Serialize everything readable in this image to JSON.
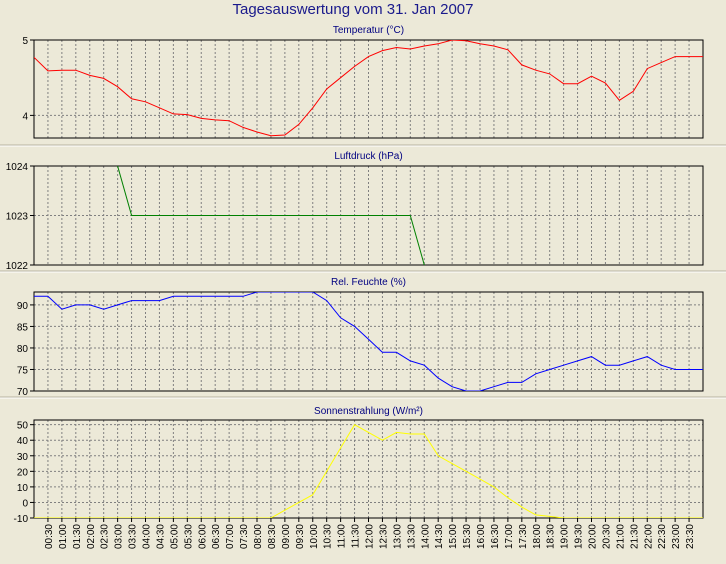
{
  "title": "Tagesauswertung vom 31. Jan 2007",
  "colors": {
    "background": "#ece9d8",
    "plot_background": "#ece9d8",
    "grid": "#808080",
    "axis": "#000000",
    "title": "#1a1a8c"
  },
  "time_labels": [
    "00:30",
    "01:00",
    "01:30",
    "02:00",
    "02:30",
    "03:00",
    "03:30",
    "04:00",
    "04:30",
    "05:00",
    "05:30",
    "06:00",
    "06:30",
    "07:00",
    "07:30",
    "08:00",
    "08:30",
    "09:00",
    "09:30",
    "10:00",
    "10:30",
    "11:00",
    "11:30",
    "12:00",
    "12:30",
    "13:00",
    "13:30",
    "14:00",
    "14:30",
    "15:00",
    "15:30",
    "16:00",
    "16:30",
    "17:00",
    "17:30",
    "18:00",
    "18:30",
    "19:00",
    "19:30",
    "20:00",
    "20:30",
    "21:00",
    "21:30",
    "22:00",
    "22:30",
    "23:00",
    "23:30"
  ],
  "chart_data": [
    {
      "type": "line",
      "title": "Temperatur (°C)",
      "ylim": [
        3.7,
        5.0
      ],
      "yticks": [
        4,
        5
      ],
      "grid": true,
      "series": [
        {
          "color": "#ff0000",
          "x": [
            "00:00",
            "00:30",
            "01:00",
            "01:30",
            "02:00",
            "02:30",
            "03:00",
            "03:30",
            "04:00",
            "04:30",
            "05:00",
            "05:30",
            "06:00",
            "06:30",
            "07:00",
            "07:30",
            "08:00",
            "08:30",
            "09:00",
            "09:30",
            "10:00",
            "10:30",
            "11:00",
            "11:30",
            "12:00",
            "12:30",
            "13:00",
            "13:30",
            "14:00",
            "14:30",
            "15:00",
            "15:30",
            "16:00",
            "16:30",
            "17:00",
            "17:30",
            "18:00",
            "18:30",
            "19:00",
            "19:30",
            "20:00",
            "20:30",
            "21:00",
            "21:30",
            "22:00",
            "22:30",
            "23:00",
            "23:30",
            "24:00"
          ],
          "values": [
            4.77,
            4.59,
            4.6,
            4.6,
            4.53,
            4.49,
            4.38,
            4.22,
            4.18,
            4.1,
            4.02,
            4.01,
            3.96,
            3.94,
            3.93,
            3.84,
            3.78,
            3.73,
            3.74,
            3.88,
            4.1,
            4.35,
            4.5,
            4.65,
            4.78,
            4.86,
            4.9,
            4.88,
            4.92,
            4.95,
            5.0,
            4.99,
            4.95,
            4.92,
            4.87,
            4.67,
            4.6,
            4.55,
            4.42,
            4.42,
            4.52,
            4.43,
            4.2,
            4.32,
            4.62,
            4.7,
            4.78,
            4.78,
            4.78
          ]
        }
      ]
    },
    {
      "type": "line",
      "title": "Luftdruck (hPa)",
      "ylim": [
        1022,
        1024
      ],
      "yticks": [
        1022,
        1023,
        1024
      ],
      "grid": true,
      "series": [
        {
          "color": "#008000",
          "x": [
            "03:00",
            "03:30",
            "04:00",
            "04:30",
            "05:00",
            "05:30",
            "06:00",
            "06:30",
            "07:00",
            "07:30",
            "08:00",
            "08:30",
            "09:00",
            "09:30",
            "10:00",
            "10:30",
            "11:00",
            "11:30",
            "12:00",
            "12:30",
            "13:00",
            "13:30",
            "14:00"
          ],
          "values": [
            1024.0,
            1023.0,
            1023.0,
            1023.0,
            1023.0,
            1023.0,
            1023.0,
            1023.0,
            1023.0,
            1023.0,
            1023.0,
            1023.0,
            1023.0,
            1023.0,
            1023.0,
            1023.0,
            1023.0,
            1023.0,
            1023.0,
            1023.0,
            1023.0,
            1023.0,
            1022.0
          ]
        }
      ]
    },
    {
      "type": "line",
      "title": "Rel. Feuchte (%)",
      "ylim": [
        70,
        93
      ],
      "yticks": [
        70,
        75,
        80,
        85,
        90
      ],
      "grid": true,
      "series": [
        {
          "color": "#0000ff",
          "x": [
            "00:00",
            "00:30",
            "01:00",
            "01:30",
            "02:00",
            "02:30",
            "03:00",
            "03:30",
            "04:00",
            "04:30",
            "05:00",
            "05:30",
            "06:00",
            "06:30",
            "07:00",
            "07:30",
            "08:00",
            "08:30",
            "09:00",
            "09:30",
            "10:00",
            "10:30",
            "11:00",
            "11:30",
            "12:00",
            "12:30",
            "13:00",
            "13:30",
            "14:00",
            "14:30",
            "15:00",
            "15:30",
            "16:00",
            "16:30",
            "17:00",
            "17:30",
            "18:00",
            "18:30",
            "19:00",
            "19:30",
            "20:00",
            "20:30",
            "21:00",
            "21:30",
            "22:00",
            "22:30",
            "23:00",
            "23:30",
            "24:00"
          ],
          "values": [
            92,
            92,
            89,
            90,
            90,
            89,
            90,
            91,
            91,
            91,
            92,
            92,
            92,
            92,
            92,
            92,
            93,
            93,
            93,
            93,
            93,
            91,
            87,
            85,
            82,
            79,
            79,
            77,
            76,
            73,
            71,
            70,
            70,
            71,
            72,
            72,
            74,
            75,
            76,
            77,
            78,
            76,
            76,
            77,
            78,
            76,
            75,
            75,
            75
          ]
        }
      ]
    },
    {
      "type": "line",
      "title": "Sonnenstrahlung (W/m²)",
      "ylim": [
        -10,
        53
      ],
      "yticks": [
        -10,
        0,
        10,
        20,
        30,
        40,
        50
      ],
      "grid": true,
      "series": [
        {
          "color": "#ffff00",
          "x": [
            "00:00",
            "00:30",
            "01:00",
            "01:30",
            "02:00",
            "02:30",
            "03:00",
            "03:30",
            "04:00",
            "04:30",
            "05:00",
            "05:30",
            "06:00",
            "06:30",
            "07:00",
            "07:30",
            "08:00",
            "08:30",
            "09:00",
            "09:30",
            "10:00",
            "10:30",
            "11:00",
            "11:30",
            "12:00",
            "12:30",
            "13:00",
            "13:30",
            "14:00",
            "14:30",
            "15:00",
            "15:30",
            "16:00",
            "16:30",
            "17:00",
            "17:30",
            "18:00",
            "18:30",
            "19:00",
            "19:30",
            "20:00",
            "20:30",
            "21:00",
            "21:30",
            "22:00",
            "22:30",
            "23:00",
            "23:30",
            "24:00"
          ],
          "values": [
            -10,
            -10,
            -10,
            -10,
            -10,
            -10,
            -10,
            -10,
            -10,
            -10,
            -10,
            -10,
            -10,
            -10,
            -10,
            -10,
            -10,
            -10,
            -5,
            0,
            5,
            20,
            35,
            50,
            45,
            40,
            45,
            44,
            44,
            30,
            25,
            20,
            15,
            10,
            3,
            -3,
            -8,
            -9,
            -10,
            -10,
            -10,
            -10,
            -10,
            -10,
            -10,
            -10,
            -10,
            -10,
            -10
          ]
        }
      ]
    }
  ]
}
